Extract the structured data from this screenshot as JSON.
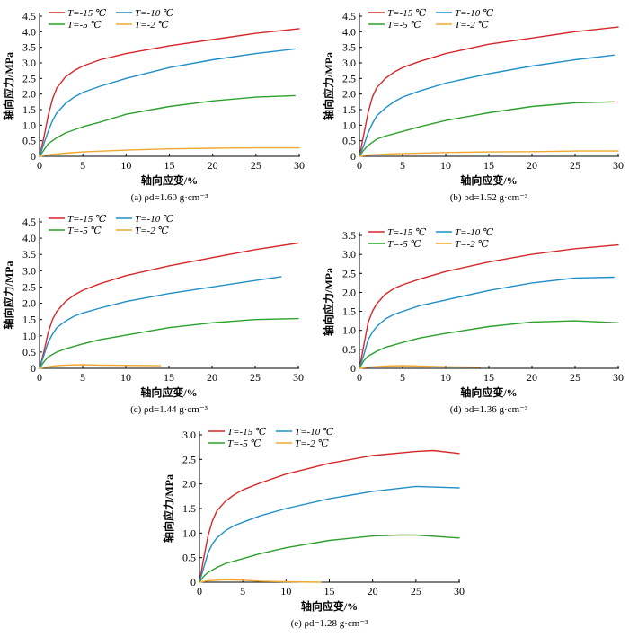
{
  "chart_data": [
    {
      "type": "line",
      "caption": "(a) ρd=1.60 g·cm⁻³",
      "xlabel": "轴向应变/%",
      "ylabel": "轴向应力/MPa",
      "xlim": [
        0,
        30
      ],
      "ylim": [
        0,
        4.5
      ],
      "xticks": [
        0,
        5,
        10,
        15,
        20,
        25,
        30
      ],
      "yticks": [
        0,
        0.5,
        1.0,
        1.5,
        2.0,
        2.5,
        3.0,
        3.5,
        4.0,
        4.5
      ],
      "ytick_labels": [
        "0",
        "0.5",
        "1.0",
        "1.5",
        "2.0",
        "2.5",
        "3.0",
        "3.5",
        "4.0",
        "4.5"
      ],
      "legend": "top-left",
      "series": [
        {
          "name": "T=-15 ℃",
          "color": "#d62728",
          "x": [
            0,
            0.5,
            1,
            1.5,
            2,
            3,
            4,
            5,
            7,
            10,
            15,
            20,
            25,
            30
          ],
          "y": [
            0,
            0.6,
            1.3,
            1.85,
            2.2,
            2.55,
            2.75,
            2.9,
            3.1,
            3.3,
            3.55,
            3.75,
            3.95,
            4.1
          ]
        },
        {
          "name": "T=-10 ℃",
          "color": "#1f8fc7",
          "x": [
            0,
            0.5,
            1,
            1.5,
            2,
            3,
            4,
            5,
            7,
            10,
            15,
            20,
            25,
            29.5
          ],
          "y": [
            0,
            0.4,
            0.8,
            1.15,
            1.4,
            1.7,
            1.9,
            2.05,
            2.25,
            2.5,
            2.85,
            3.1,
            3.3,
            3.45
          ]
        },
        {
          "name": "T=-5 ℃",
          "color": "#2ca02c",
          "x": [
            0,
            0.5,
            1,
            2,
            3,
            5,
            7,
            10,
            15,
            20,
            25,
            29.5
          ],
          "y": [
            0,
            0.2,
            0.4,
            0.6,
            0.75,
            0.95,
            1.1,
            1.35,
            1.6,
            1.78,
            1.9,
            1.95
          ]
        },
        {
          "name": "T=-2 ℃",
          "color": "#f0a830",
          "x": [
            0,
            1,
            3,
            5,
            10,
            15,
            20,
            25,
            30
          ],
          "y": [
            0,
            0.05,
            0.1,
            0.14,
            0.2,
            0.24,
            0.26,
            0.27,
            0.27
          ]
        }
      ]
    },
    {
      "type": "line",
      "caption": "(b) ρd=1.52 g·cm⁻³",
      "xlabel": "轴向应变/%",
      "ylabel": "轴向应力/MPa",
      "xlim": [
        0,
        30
      ],
      "ylim": [
        0,
        4.5
      ],
      "xticks": [
        0,
        5,
        10,
        15,
        20,
        25,
        30
      ],
      "yticks": [
        0,
        0.5,
        1.0,
        1.5,
        2.0,
        2.5,
        3.0,
        3.5,
        4.0,
        4.5
      ],
      "ytick_labels": [
        "0",
        "0.5",
        "1.0",
        "1.5",
        "2.0",
        "2.5",
        "3.0",
        "3.5",
        "4.0",
        "4.5"
      ],
      "legend": "top-left",
      "series": [
        {
          "name": "T=-15 ℃",
          "color": "#d62728",
          "x": [
            0,
            0.5,
            1,
            1.5,
            2,
            3,
            4,
            5,
            7,
            10,
            15,
            20,
            25,
            30
          ],
          "y": [
            0,
            0.7,
            1.4,
            1.9,
            2.2,
            2.5,
            2.7,
            2.85,
            3.05,
            3.3,
            3.6,
            3.8,
            4.0,
            4.15
          ]
        },
        {
          "name": "T=-10 ℃",
          "color": "#1f8fc7",
          "x": [
            0,
            0.5,
            1,
            1.5,
            2,
            3,
            4,
            5,
            7,
            10,
            15,
            20,
            25,
            29.5
          ],
          "y": [
            0,
            0.35,
            0.75,
            1.05,
            1.3,
            1.55,
            1.75,
            1.9,
            2.1,
            2.35,
            2.65,
            2.9,
            3.1,
            3.25
          ]
        },
        {
          "name": "T=-5 ℃",
          "color": "#2ca02c",
          "x": [
            0,
            0.5,
            1,
            2,
            3,
            5,
            7,
            10,
            15,
            20,
            25,
            29.5
          ],
          "y": [
            0,
            0.2,
            0.35,
            0.55,
            0.65,
            0.8,
            0.95,
            1.15,
            1.4,
            1.6,
            1.72,
            1.75
          ]
        },
        {
          "name": "T=-2 ℃",
          "color": "#f0a830",
          "x": [
            0,
            1,
            3,
            5,
            10,
            15,
            20,
            25,
            30
          ],
          "y": [
            0,
            0.04,
            0.07,
            0.09,
            0.12,
            0.14,
            0.15,
            0.17,
            0.17
          ]
        }
      ]
    },
    {
      "type": "line",
      "caption": "(c) ρd=1.44 g·cm⁻³",
      "xlabel": "轴向应变/%",
      "ylabel": "轴向应力/MPa",
      "xlim": [
        0,
        30
      ],
      "ylim": [
        0,
        4.5
      ],
      "xticks": [
        0,
        5,
        10,
        15,
        20,
        25,
        30
      ],
      "yticks": [
        0,
        0.5,
        1.0,
        1.5,
        2.0,
        2.5,
        3.0,
        3.5,
        4.0,
        4.5
      ],
      "ytick_labels": [
        "0",
        "0.5",
        "1.0",
        "1.5",
        "2.0",
        "2.5",
        "3.0",
        "3.5",
        "4.0",
        "4.5"
      ],
      "legend": "top-left",
      "series": [
        {
          "name": "T=-15 ℃",
          "color": "#d62728",
          "x": [
            0,
            0.5,
            1,
            1.5,
            2,
            3,
            4,
            5,
            7,
            10,
            15,
            20,
            25,
            30
          ],
          "y": [
            0,
            0.5,
            1.1,
            1.5,
            1.75,
            2.05,
            2.25,
            2.4,
            2.6,
            2.85,
            3.15,
            3.4,
            3.65,
            3.85
          ]
        },
        {
          "name": "T=-10 ℃",
          "color": "#1f8fc7",
          "x": [
            0,
            0.5,
            1,
            1.5,
            2,
            3,
            4,
            5,
            7,
            10,
            15,
            20,
            25,
            28
          ],
          "y": [
            0,
            0.4,
            0.8,
            1.05,
            1.25,
            1.45,
            1.6,
            1.7,
            1.85,
            2.05,
            2.3,
            2.5,
            2.7,
            2.82
          ]
        },
        {
          "name": "T=-5 ℃",
          "color": "#2ca02c",
          "x": [
            0,
            0.5,
            1,
            2,
            3,
            5,
            7,
            10,
            15,
            20,
            25,
            30
          ],
          "y": [
            0,
            0.2,
            0.35,
            0.5,
            0.6,
            0.75,
            0.88,
            1.02,
            1.25,
            1.4,
            1.5,
            1.53
          ]
        },
        {
          "name": "T=-2 ℃",
          "color": "#f0a830",
          "x": [
            0,
            1,
            2,
            3,
            5,
            7,
            10,
            14
          ],
          "y": [
            0,
            0.05,
            0.08,
            0.1,
            0.11,
            0.1,
            0.09,
            0.08
          ]
        }
      ]
    },
    {
      "type": "line",
      "caption": "(d) ρd=1.36 g·cm⁻³",
      "xlabel": "轴向应变/%",
      "ylabel": "轴向应力/MPa",
      "xlim": [
        0,
        30
      ],
      "ylim": [
        0,
        3.5
      ],
      "xticks": [
        0,
        5,
        10,
        15,
        20,
        25,
        30
      ],
      "yticks": [
        0,
        0.5,
        1.0,
        1.5,
        2.0,
        2.5,
        3.0,
        3.5
      ],
      "ytick_labels": [
        "0",
        "0.5",
        "1.0",
        "1.5",
        "2.0",
        "2.5",
        "3.0",
        "3.5"
      ],
      "legend": "top-left",
      "series": [
        {
          "name": "T=-15 ℃",
          "color": "#d62728",
          "x": [
            0,
            0.5,
            1,
            1.5,
            2,
            3,
            4,
            5,
            7,
            10,
            15,
            20,
            25,
            30
          ],
          "y": [
            0,
            0.6,
            1.2,
            1.5,
            1.7,
            1.95,
            2.1,
            2.2,
            2.35,
            2.55,
            2.8,
            3.0,
            3.15,
            3.25
          ]
        },
        {
          "name": "T=-10 ℃",
          "color": "#1f8fc7",
          "x": [
            0,
            0.5,
            1,
            1.5,
            2,
            3,
            4,
            5,
            7,
            10,
            15,
            20,
            25,
            29.5
          ],
          "y": [
            0,
            0.35,
            0.75,
            0.95,
            1.1,
            1.3,
            1.42,
            1.5,
            1.65,
            1.8,
            2.05,
            2.25,
            2.38,
            2.4
          ]
        },
        {
          "name": "T=-5 ℃",
          "color": "#2ca02c",
          "x": [
            0,
            0.5,
            1,
            2,
            3,
            5,
            7,
            10,
            15,
            20,
            25,
            30
          ],
          "y": [
            0,
            0.2,
            0.32,
            0.45,
            0.55,
            0.68,
            0.8,
            0.92,
            1.1,
            1.22,
            1.25,
            1.2
          ]
        },
        {
          "name": "T=-2 ℃",
          "color": "#f0a830",
          "x": [
            0,
            1,
            3,
            5,
            7,
            10,
            14
          ],
          "y": [
            0,
            0.03,
            0.06,
            0.07,
            0.06,
            0.04,
            0.03
          ]
        }
      ]
    },
    {
      "type": "line",
      "caption": "(e) ρd=1.28 g·cm⁻³",
      "xlabel": "轴向应变/%",
      "ylabel": "轴向应力/MPa",
      "xlim": [
        0,
        30
      ],
      "ylim": [
        0,
        3.0
      ],
      "xticks": [
        0,
        5,
        10,
        15,
        20,
        25,
        30
      ],
      "yticks": [
        0,
        0.5,
        1.0,
        1.5,
        2.0,
        2.5,
        3.0
      ],
      "ytick_labels": [
        "0",
        "0.5",
        "1.0",
        "1.5",
        "2.0",
        "2.5",
        "3.0"
      ],
      "legend": "top-left",
      "series": [
        {
          "name": "T=-15 ℃",
          "color": "#d62728",
          "x": [
            0,
            0.5,
            1,
            1.5,
            2,
            3,
            4,
            5,
            7,
            10,
            15,
            20,
            25,
            27,
            30
          ],
          "y": [
            0,
            0.5,
            0.95,
            1.25,
            1.45,
            1.65,
            1.78,
            1.88,
            2.02,
            2.2,
            2.42,
            2.58,
            2.66,
            2.68,
            2.62
          ]
        },
        {
          "name": "T=-10 ℃",
          "color": "#1f8fc7",
          "x": [
            0,
            0.5,
            1,
            1.5,
            2,
            3,
            4,
            5,
            7,
            10,
            15,
            20,
            25,
            30
          ],
          "y": [
            0,
            0.3,
            0.6,
            0.78,
            0.9,
            1.05,
            1.15,
            1.22,
            1.35,
            1.5,
            1.7,
            1.85,
            1.95,
            1.92
          ]
        },
        {
          "name": "T=-5 ℃",
          "color": "#2ca02c",
          "x": [
            0,
            0.5,
            1,
            2,
            3,
            5,
            7,
            10,
            15,
            20,
            23,
            25,
            30
          ],
          "y": [
            0,
            0.12,
            0.2,
            0.3,
            0.38,
            0.48,
            0.58,
            0.7,
            0.85,
            0.94,
            0.96,
            0.96,
            0.9
          ]
        },
        {
          "name": "T=-2 ℃",
          "color": "#f0a830",
          "x": [
            0,
            1,
            3,
            5,
            7,
            10,
            14
          ],
          "y": [
            0,
            0.03,
            0.05,
            0.04,
            0.02,
            0.01,
            0.0
          ]
        }
      ]
    }
  ]
}
